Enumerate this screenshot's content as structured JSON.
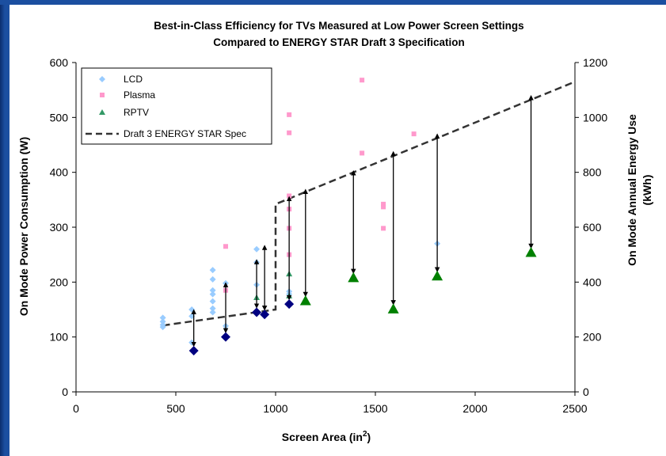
{
  "chart_data": {
    "type": "scatter",
    "title": [
      "Best-in-Class Efficiency for TVs Measured at Low Power Screen Settings",
      "Compared to ENERGY STAR Draft 3 Specification"
    ],
    "xlabel": "Screen Area (in",
    "xlabel_sup": "2",
    "xlabel_end": ")",
    "ylabel": "On Mode Power Consumption (W)",
    "y2label": [
      "On Mode Annual Energy Use",
      "(kWh)"
    ],
    "xlim": [
      0,
      2500
    ],
    "ylim": [
      0,
      600
    ],
    "y2lim": [
      0,
      1200
    ],
    "xticks": [
      0,
      500,
      1000,
      1500,
      2000,
      2500
    ],
    "yticks": [
      0,
      100,
      200,
      300,
      400,
      500,
      600
    ],
    "y2ticks": [
      0,
      200,
      400,
      600,
      800,
      1000,
      1200
    ],
    "grid": false,
    "legend_position": "top-left",
    "colors": {
      "lcd": "#99ccff",
      "plasma": "#ff99cc",
      "rptv": "#339966",
      "best_lcd": "#000080",
      "best_rptv": "#008000",
      "spec": "#333333",
      "arrow": "#000000"
    },
    "series": [
      {
        "name": "LCD",
        "marker": "diamond",
        "points": [
          [
            435,
            135
          ],
          [
            435,
            128
          ],
          [
            435,
            122
          ],
          [
            435,
            118
          ],
          [
            580,
            150
          ],
          [
            580,
            138
          ],
          [
            580,
            90
          ],
          [
            685,
            222
          ],
          [
            685,
            205
          ],
          [
            685,
            185
          ],
          [
            685,
            178
          ],
          [
            685,
            165
          ],
          [
            685,
            152
          ],
          [
            685,
            145
          ],
          [
            750,
            198
          ],
          [
            750,
            120
          ],
          [
            905,
            260
          ],
          [
            905,
            236
          ],
          [
            905,
            195
          ],
          [
            1068,
            183
          ],
          [
            1068,
            178
          ],
          [
            1810,
            270
          ]
        ]
      },
      {
        "name": "Plasma",
        "marker": "square",
        "points": [
          [
            750,
            265
          ],
          [
            750,
            185
          ],
          [
            1068,
            505
          ],
          [
            1068,
            472
          ],
          [
            1068,
            357
          ],
          [
            1068,
            333
          ],
          [
            1068,
            298
          ],
          [
            1068,
            250
          ],
          [
            1433,
            568
          ],
          [
            1433,
            435
          ],
          [
            1540,
            342
          ],
          [
            1540,
            337
          ],
          [
            1540,
            298
          ],
          [
            1693,
            470
          ]
        ]
      },
      {
        "name": "RPTV",
        "marker": "triangle",
        "points": [
          [
            905,
            172
          ],
          [
            1068,
            215
          ],
          [
            1068,
            175
          ]
        ]
      },
      {
        "name": "Draft 3 ENERGY STAR Spec",
        "marker": "dashed-line",
        "points": [
          [
            435,
            121
          ],
          [
            1000,
            150
          ],
          [
            1000,
            342
          ],
          [
            2500,
            565
          ]
        ]
      }
    ],
    "best_lcd": [
      [
        590,
        75
      ],
      [
        750,
        100
      ],
      [
        905,
        145
      ],
      [
        945,
        141
      ],
      [
        1068,
        160
      ]
    ],
    "best_rptv": [
      [
        1150,
        166
      ],
      [
        1390,
        208
      ],
      [
        1590,
        151
      ],
      [
        1810,
        211
      ],
      [
        2280,
        254
      ]
    ],
    "arrows": [
      [
        590,
        75,
        590,
        149
      ],
      [
        750,
        100,
        750,
        198
      ],
      [
        905,
        145,
        905,
        240
      ],
      [
        945,
        141,
        945,
        266
      ],
      [
        1068,
        160,
        1068,
        355
      ],
      [
        1150,
        166,
        1150,
        368
      ],
      [
        1390,
        208,
        1390,
        402
      ],
      [
        1590,
        151,
        1590,
        437
      ],
      [
        1810,
        211,
        1810,
        469
      ],
      [
        2280,
        254,
        2280,
        539
      ]
    ]
  }
}
